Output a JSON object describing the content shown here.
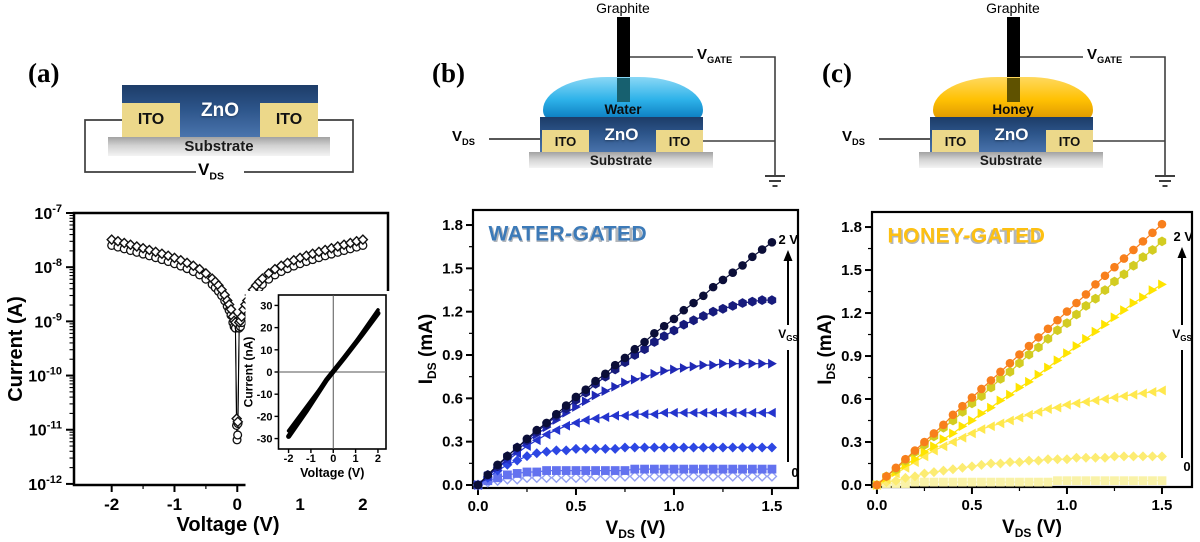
{
  "colors": {
    "water_drop": "#2eb2e9",
    "water_drop_light": "#8ad8f6",
    "water_drop_dark": "#0d7fc2",
    "honey_drop": "#ffc103",
    "honey_drop_light": "#ffd95e",
    "honey_drop_dark": "#e09a00",
    "water_rod_tint": "#17606f",
    "honey_rod_tint": "#5f5200",
    "zno_top": "#1d3c68",
    "zno_bottom": "#4a74ad",
    "ito": "#ecd88a",
    "substrate_top": "#a2a2a2",
    "substrate_bottom": "#f4f4f4",
    "graphite": "#000000",
    "water_title": "#3c7ab8",
    "honey_title": "#fdc012",
    "wire": "#3f3f3f"
  },
  "figure": {
    "panel_a": {
      "label": "(a)",
      "schematic": {
        "zno": "ZnO",
        "ito_left": "ITO",
        "ito_right": "ITO",
        "substrate": "Substrate",
        "vds": {
          "pre": "V",
          "sub": "DS"
        }
      }
    },
    "panel_b": {
      "label": "(b)",
      "schematic": {
        "graphite": "Graphite",
        "liquid": "Water",
        "zno": "ZnO",
        "ito_left": "ITO",
        "ito_right": "ITO",
        "substrate": "Substrate",
        "vds": {
          "pre": "V",
          "sub": "DS"
        },
        "vgate": {
          "pre": "V",
          "sub": "GATE"
        }
      }
    },
    "panel_c": {
      "label": "(c)",
      "schematic": {
        "graphite": "Graphite",
        "liquid": "Honey",
        "zno": "ZnO",
        "ito_left": "ITO",
        "ito_right": "ITO",
        "substrate": "Substrate",
        "vds": {
          "pre": "V",
          "sub": "DS"
        },
        "vgate": {
          "pre": "V",
          "sub": "GATE"
        }
      }
    }
  },
  "chart_data": [
    {
      "id": "device_iv",
      "type": "scatter",
      "x_label": "Voltage (V)",
      "y_label": "Current (A)",
      "x_ticks": [
        -2,
        -1,
        0,
        1,
        2
      ],
      "x_minor_ticks": [
        -1.5,
        -0.5,
        0.5,
        1.5
      ],
      "y_tick_exponents": [
        -7,
        -8,
        -9,
        -10,
        -11,
        -12
      ],
      "xlim": [
        -2.6,
        2.4
      ],
      "ylim_exponents": [
        -12.02,
        -7
      ],
      "grid": false,
      "legend": "none",
      "branch_x": [
        0.03,
        0.05,
        0.07,
        0.1,
        0.13,
        0.16,
        0.2,
        0.25,
        0.3,
        0.35,
        0.4,
        0.5,
        0.6,
        0.7,
        0.8,
        0.9,
        1.0,
        1.1,
        1.2,
        1.3,
        1.4,
        1.5,
        1.6,
        1.7,
        1.8,
        1.9,
        2.0
      ],
      "branch_i": [
        7.5e-10,
        8e-10,
        9.5e-10,
        1.3e-09,
        1.6e-09,
        1.9e-09,
        2.4e-09,
        3e-09,
        3.6e-09,
        4.2e-09,
        4.8e-09,
        6e-09,
        7.2e-09,
        8.3e-09,
        9.4e-09,
        1.05e-08,
        1.16e-08,
        1.27e-08,
        1.38e-08,
        1.5e-08,
        1.62e-08,
        1.75e-08,
        1.88e-08,
        2.03e-08,
        2.18e-08,
        2.35e-08,
        2.52e-08
      ],
      "series": [
        {
          "name": "sweep 1 (open circles)",
          "marker": "circle-open",
          "color": "#111111",
          "scale": 1.0,
          "dip_x": [
            -0.012,
            -0.004,
            0.006,
            0.012
          ],
          "dip_i": [
            1.2e-11,
            6.5e-12,
            8e-12,
            1.3e-11
          ]
        },
        {
          "name": "sweep 2 (open diamonds)",
          "marker": "diamond-open",
          "color": "#111111",
          "scale": 1.28,
          "dip_x": [
            -0.01,
            0.008
          ],
          "dip_i": [
            1.6e-11,
            1.4e-11
          ]
        }
      ]
    },
    {
      "id": "device_iv_inset",
      "type": "line",
      "x_label": "Voltage (V)",
      "y_label": "Current (nA)",
      "x_ticks": [
        -2,
        -1,
        0,
        1,
        2
      ],
      "y_ticks": [
        30,
        20,
        10,
        0,
        -10,
        -20,
        -30
      ],
      "xlim": [
        -2.45,
        2.36
      ],
      "ylim": [
        -34.7,
        34.7
      ],
      "crosshair": true,
      "series": [
        {
          "name": "linear sweep band 1",
          "color": "#000000",
          "width": 5,
          "points": [
            [
              -2,
              -29
            ],
            [
              -1.2,
              -17.5
            ],
            [
              -0.3,
              -3.5
            ],
            [
              0.5,
              6.5
            ],
            [
              1.3,
              17
            ],
            [
              2,
              26.5
            ]
          ]
        },
        {
          "name": "linear sweep band 2",
          "color": "#000000",
          "width": 3.5,
          "points": [
            [
              -2,
              -26.5
            ],
            [
              -1,
              -13
            ],
            [
              0,
              0.5
            ],
            [
              1,
              13.5
            ],
            [
              2,
              28
            ]
          ]
        }
      ]
    },
    {
      "id": "water_gated_output",
      "type": "scatter",
      "title": "WATER-GATED",
      "title_color": "#3c7ab8",
      "x_label": {
        "pre": "V",
        "sub": "DS",
        "post": " (V)"
      },
      "y_label": {
        "pre": "I",
        "sub": "DS",
        "post": " (mA)"
      },
      "x_ticks": [
        0.0,
        0.5,
        1.0,
        1.5
      ],
      "x_minor_ticks": [
        0.25,
        0.75,
        1.25
      ],
      "y_ticks": [
        0.0,
        0.3,
        0.6,
        0.9,
        1.2,
        1.5,
        1.8
      ],
      "y_minor_ticks": [
        0.15,
        0.45,
        0.75,
        1.05,
        1.35,
        1.65
      ],
      "xlim": [
        -0.0255,
        1.633
      ],
      "ylim": [
        -0.0208,
        1.904
      ],
      "annotations": {
        "top_label": "2 V",
        "gate_pre": "V",
        "gate_sub": "GS",
        "bottom_label": "0"
      },
      "x0": 0,
      "dx": 0.05,
      "series": [
        {
          "name": "VGS = 2 V",
          "marker": "circle",
          "color": "#0b0e38",
          "y": [
            0,
            0.07,
            0.14,
            0.2,
            0.26,
            0.32,
            0.38,
            0.43,
            0.49,
            0.55,
            0.61,
            0.66,
            0.72,
            0.77,
            0.83,
            0.88,
            0.94,
            0.99,
            1.05,
            1.1,
            1.15,
            1.21,
            1.26,
            1.31,
            1.37,
            1.42,
            1.47,
            1.52,
            1.58,
            1.63,
            1.68
          ]
        },
        {
          "name": "VGS step 6",
          "marker": "hexagon",
          "color": "#171b7c",
          "y": [
            0,
            0.07,
            0.13,
            0.2,
            0.26,
            0.31,
            0.37,
            0.42,
            0.48,
            0.53,
            0.59,
            0.64,
            0.7,
            0.75,
            0.8,
            0.85,
            0.9,
            0.94,
            0.99,
            1.03,
            1.07,
            1.11,
            1.14,
            1.17,
            1.2,
            1.22,
            1.24,
            1.26,
            1.27,
            1.28,
            1.28
          ]
        },
        {
          "name": "VGS step 5",
          "marker": "tri-right",
          "color": "#1f28b5",
          "y": [
            0,
            0.06,
            0.12,
            0.18,
            0.24,
            0.3,
            0.35,
            0.4,
            0.45,
            0.5,
            0.54,
            0.58,
            0.62,
            0.65,
            0.68,
            0.71,
            0.73,
            0.75,
            0.77,
            0.79,
            0.8,
            0.81,
            0.82,
            0.83,
            0.83,
            0.84,
            0.84,
            0.84,
            0.84,
            0.84,
            0.84
          ]
        },
        {
          "name": "VGS step 4",
          "marker": "tri-left",
          "color": "#2434cd",
          "y": [
            0,
            0.06,
            0.12,
            0.17,
            0.22,
            0.27,
            0.31,
            0.35,
            0.38,
            0.41,
            0.43,
            0.45,
            0.46,
            0.47,
            0.48,
            0.48,
            0.49,
            0.49,
            0.49,
            0.5,
            0.5,
            0.5,
            0.5,
            0.5,
            0.5,
            0.5,
            0.5,
            0.5,
            0.5,
            0.5,
            0.5
          ]
        },
        {
          "name": "VGS step 3",
          "marker": "diamond",
          "color": "#2d47e3",
          "y": [
            0,
            0.05,
            0.1,
            0.14,
            0.17,
            0.2,
            0.22,
            0.23,
            0.24,
            0.24,
            0.25,
            0.25,
            0.25,
            0.25,
            0.25,
            0.26,
            0.26,
            0.26,
            0.26,
            0.26,
            0.26,
            0.26,
            0.26,
            0.26,
            0.26,
            0.26,
            0.26,
            0.26,
            0.26,
            0.26,
            0.26
          ]
        },
        {
          "name": "VGS step 2",
          "marker": "square",
          "color": "#6372ef",
          "y": [
            0,
            0.03,
            0.05,
            0.07,
            0.08,
            0.09,
            0.09,
            0.1,
            0.1,
            0.1,
            0.1,
            0.1,
            0.1,
            0.1,
            0.1,
            0.1,
            0.11,
            0.11,
            0.11,
            0.11,
            0.11,
            0.11,
            0.11,
            0.11,
            0.11,
            0.11,
            0.11,
            0.11,
            0.11,
            0.11,
            0.11
          ]
        },
        {
          "name": "VGS = 0",
          "marker": "diamond-open",
          "color": "#93a0f3",
          "y": [
            0,
            0.02,
            0.03,
            0.04,
            0.04,
            0.05,
            0.05,
            0.05,
            0.05,
            0.05,
            0.05,
            0.05,
            0.06,
            0.06,
            0.06,
            0.06,
            0.06,
            0.06,
            0.06,
            0.06,
            0.06,
            0.06,
            0.06,
            0.06,
            0.06,
            0.06,
            0.06,
            0.06,
            0.06,
            0.06,
            0.06
          ]
        }
      ]
    },
    {
      "id": "honey_gated_output",
      "type": "scatter",
      "title": "HONEY-GATED",
      "title_color": "#fdc012",
      "x_label": {
        "pre": "V",
        "sub": "DS",
        "post": " (V)"
      },
      "y_label": {
        "pre": "I",
        "sub": "DS",
        "post": " (mA)"
      },
      "x_ticks": [
        0.0,
        0.5,
        1.0,
        1.5
      ],
      "x_minor_ticks": [
        0.25,
        0.75,
        1.25
      ],
      "y_ticks": [
        0.0,
        0.3,
        0.6,
        0.9,
        1.2,
        1.5,
        1.8
      ],
      "y_minor_ticks": [
        0.15,
        0.45,
        0.75,
        1.05,
        1.35,
        1.65
      ],
      "xlim": [
        -0.026,
        1.658
      ],
      "ylim": [
        -0.014,
        1.905
      ],
      "annotations": {
        "top_label": "2 V",
        "gate_pre": "V",
        "gate_sub": "GS",
        "bottom_label": "0"
      },
      "x0": 0,
      "dx": 0.05,
      "series": [
        {
          "name": "VGS = 2 V",
          "marker": "circle",
          "color": "#f87f1c",
          "y": [
            0,
            0.06,
            0.12,
            0.18,
            0.24,
            0.3,
            0.36,
            0.42,
            0.49,
            0.55,
            0.61,
            0.67,
            0.73,
            0.79,
            0.85,
            0.91,
            0.97,
            1.03,
            1.09,
            1.15,
            1.21,
            1.27,
            1.33,
            1.4,
            1.46,
            1.52,
            1.58,
            1.64,
            1.7,
            1.76,
            1.82
          ]
        },
        {
          "name": "VGS step 5",
          "marker": "hexagon",
          "color": "#d3cc21",
          "y": [
            0,
            0.06,
            0.11,
            0.17,
            0.23,
            0.28,
            0.34,
            0.4,
            0.45,
            0.51,
            0.57,
            0.62,
            0.68,
            0.74,
            0.79,
            0.85,
            0.91,
            0.96,
            1.02,
            1.08,
            1.13,
            1.19,
            1.25,
            1.3,
            1.36,
            1.42,
            1.47,
            1.53,
            1.59,
            1.64,
            1.7
          ]
        },
        {
          "name": "VGS step 4",
          "marker": "tri-right",
          "color": "#ffe400",
          "y": [
            0,
            0.05,
            0.09,
            0.14,
            0.18,
            0.23,
            0.27,
            0.32,
            0.36,
            0.41,
            0.45,
            0.5,
            0.54,
            0.59,
            0.63,
            0.68,
            0.72,
            0.77,
            0.82,
            0.87,
            0.92,
            0.97,
            1.02,
            1.07,
            1.12,
            1.17,
            1.22,
            1.27,
            1.31,
            1.36,
            1.4
          ]
        },
        {
          "name": "VGS step 3",
          "marker": "tri-left",
          "color": "#ffe84d",
          "y": [
            0,
            0.04,
            0.08,
            0.12,
            0.16,
            0.2,
            0.24,
            0.27,
            0.3,
            0.33,
            0.36,
            0.39,
            0.41,
            0.43,
            0.45,
            0.47,
            0.49,
            0.51,
            0.53,
            0.54,
            0.56,
            0.57,
            0.58,
            0.59,
            0.6,
            0.61,
            0.62,
            0.63,
            0.64,
            0.65,
            0.66
          ]
        },
        {
          "name": "VGS step 2",
          "marker": "diamond",
          "color": "#fcec72",
          "y": [
            0,
            0.02,
            0.03,
            0.05,
            0.06,
            0.08,
            0.09,
            0.1,
            0.11,
            0.12,
            0.13,
            0.14,
            0.15,
            0.15,
            0.16,
            0.16,
            0.17,
            0.17,
            0.18,
            0.18,
            0.18,
            0.19,
            0.19,
            0.19,
            0.19,
            0.2,
            0.2,
            0.2,
            0.2,
            0.2,
            0.2
          ]
        },
        {
          "name": "VGS = 0",
          "marker": "square",
          "color": "#f9f2a8",
          "y": [
            0,
            0.01,
            0.01,
            0.01,
            0.02,
            0.02,
            0.02,
            0.02,
            0.02,
            0.02,
            0.02,
            0.02,
            0.02,
            0.02,
            0.02,
            0.02,
            0.02,
            0.02,
            0.02,
            0.03,
            0.03,
            0.03,
            0.03,
            0.03,
            0.03,
            0.03,
            0.03,
            0.03,
            0.03,
            0.03,
            0.03
          ]
        }
      ]
    }
  ]
}
